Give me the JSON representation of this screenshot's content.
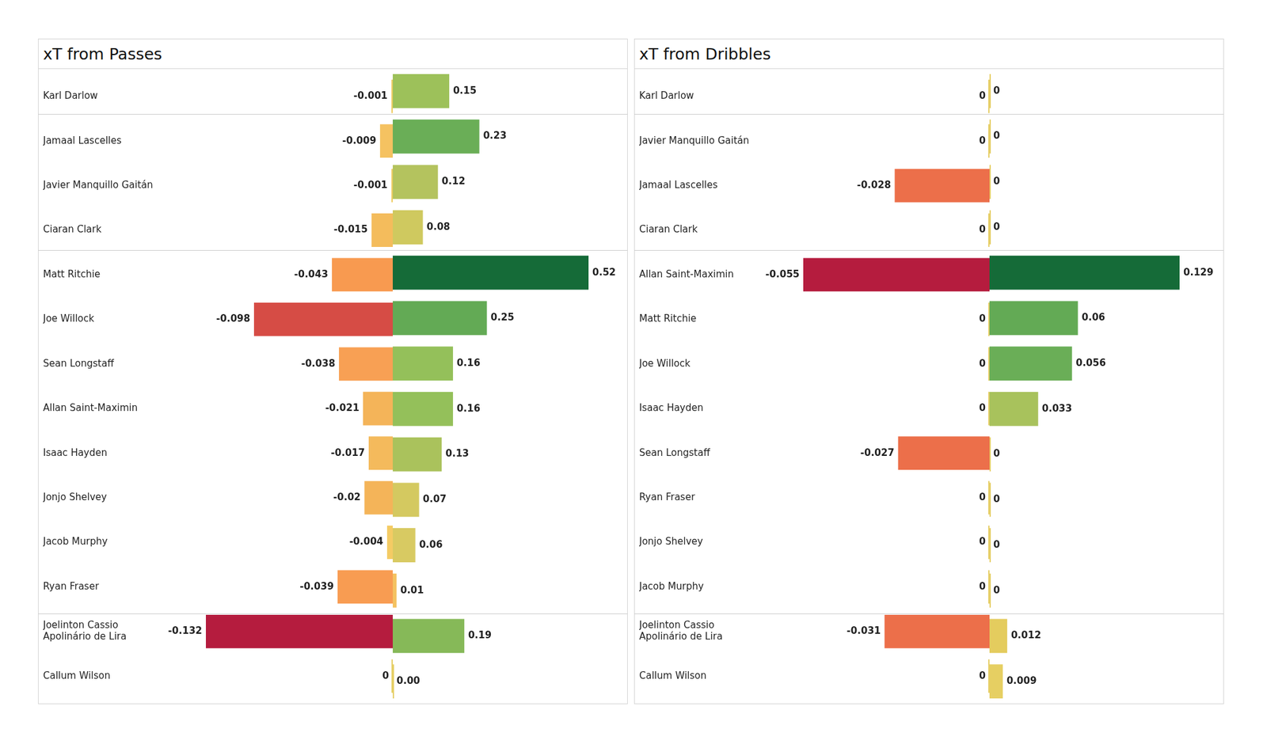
{
  "chart_data": [
    {
      "type": "bar",
      "orientation": "horizontal",
      "title": "xT from Passes",
      "data_labels": true,
      "tick_labels": "y",
      "grid": false,
      "categories": [
        "Karl Darlow",
        "Jamaal Lascelles",
        "Javier Manquillo Gaitán",
        "Ciaran Clark",
        "Matt Ritchie",
        "Joe Willock",
        "Sean Longstaff",
        "Allan Saint-Maximin",
        "Isaac Hayden",
        "Jonjo Shelvey",
        "Jacob Murphy",
        "Ryan Fraser",
        "Joelinton Cassio Apolinário de Lira",
        "Callum Wilson"
      ],
      "series": [
        {
          "values": [
            -0.001,
            -0.009,
            -0.001,
            -0.015,
            -0.043,
            -0.098,
            -0.038,
            -0.021,
            -0.017,
            -0.02,
            -0.004,
            -0.039,
            -0.132,
            0
          ],
          "colors": [
            "#f0cd66",
            "#f5c261",
            "#f0cd66",
            "#f4bc5c",
            "#f89a50",
            "#d64c45",
            "#f8a054",
            "#f4b459",
            "#f4ba5c",
            "#f4b459",
            "#f4cb64",
            "#f89c52",
            "#b51c3e",
            "#e6cf68"
          ],
          "xlim": [
            -0.132,
            0
          ]
        },
        {
          "values": [
            0.15,
            0.23,
            0.12,
            0.08,
            0.52,
            0.25,
            0.16,
            0.16,
            0.13,
            0.07,
            0.06,
            0.01,
            0.19,
            0
          ],
          "value_labels": [
            "0.15",
            "0.23",
            "0.12",
            "0.08",
            "0.52",
            "0.25",
            "0.16",
            "0.16",
            "0.13",
            "0.07",
            "0.06",
            "0.01",
            "0.19",
            "0.00"
          ],
          "colors": [
            "#9dc15a",
            "#6aae57",
            "#b4c35e",
            "#cfc95f",
            "#156b38",
            "#63aa55",
            "#94c05a",
            "#94c05a",
            "#aac25c",
            "#d4c960",
            "#d8ca62",
            "#f4c261",
            "#86b958",
            "#e6cf68"
          ],
          "xlim": [
            0,
            0.52
          ]
        }
      ]
    },
    {
      "type": "bar",
      "orientation": "horizontal",
      "title": "xT from Dribbles",
      "data_labels": true,
      "tick_labels": "y",
      "grid": false,
      "categories": [
        "Karl Darlow",
        "Javier Manquillo Gaitán",
        "Jamaal Lascelles",
        "Ciaran Clark",
        "Allan Saint-Maximin",
        "Matt Ritchie",
        "Joe Willock",
        "Isaac Hayden",
        "Sean Longstaff",
        "Ryan Fraser",
        "Jonjo Shelvey",
        "Jacob Murphy",
        "Joelinton Cassio Apolinário de Lira",
        "Callum Wilson"
      ],
      "series": [
        {
          "values": [
            0,
            0,
            -0.028,
            0,
            -0.055,
            0,
            0,
            0,
            -0.027,
            0,
            0,
            0,
            -0.031,
            0
          ],
          "colors": [
            "#e6cf68",
            "#e6cf68",
            "#ec6f4a",
            "#e6cf68",
            "#b51c3e",
            "#e6cf68",
            "#e6cf68",
            "#e6cf68",
            "#ec6f4a",
            "#e6cf68",
            "#e6cf68",
            "#e6cf68",
            "#ec6f4a",
            "#e6cf68"
          ],
          "xlim": [
            -0.055,
            0
          ]
        },
        {
          "values": [
            0,
            0,
            0,
            0,
            0.129,
            0.06,
            0.056,
            0.033,
            0,
            0,
            0,
            0,
            0.012,
            0.009
          ],
          "colors": [
            "#e6cf68",
            "#e6cf68",
            "#e6cf68",
            "#e6cf68",
            "#156b38",
            "#63aa55",
            "#6aae57",
            "#a8c25c",
            "#e6cf68",
            "#e6cf68",
            "#e6cf68",
            "#e6cf68",
            "#e4cc5e",
            "#e6cf62"
          ],
          "xlim": [
            0,
            0.129
          ]
        }
      ]
    }
  ]
}
